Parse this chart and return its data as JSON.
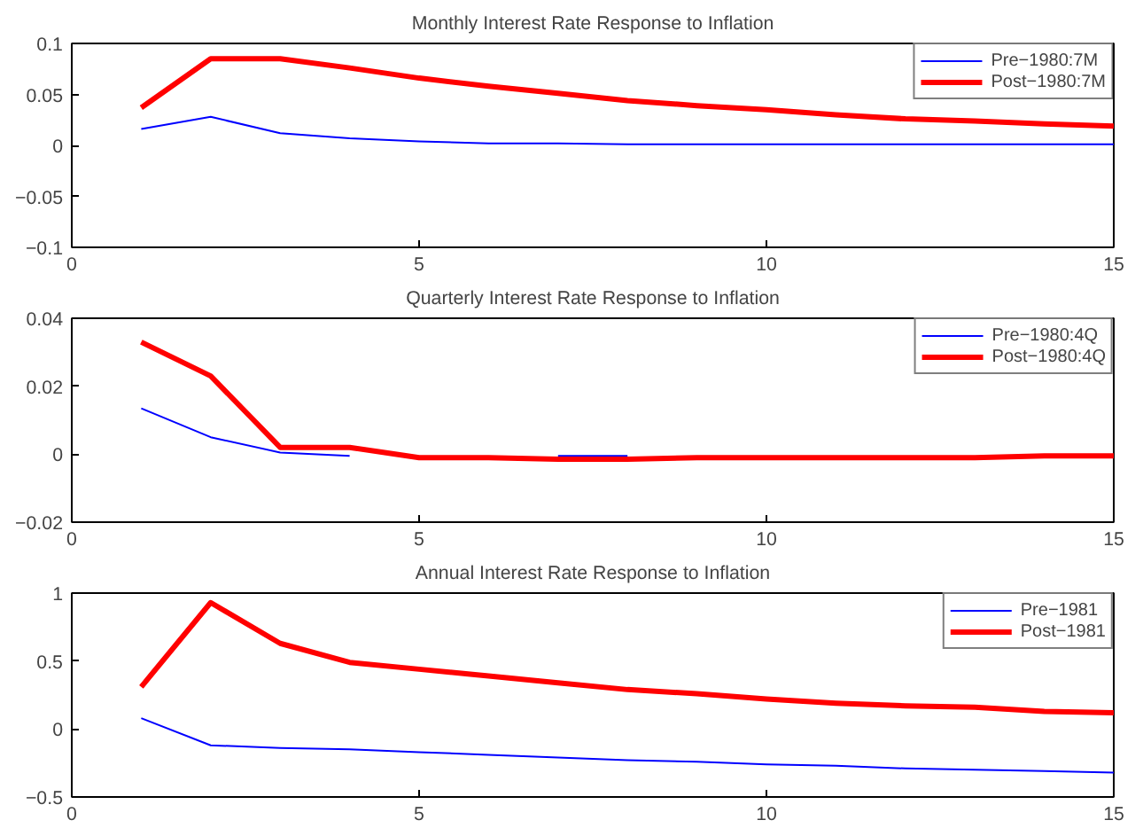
{
  "chart_data": [
    {
      "type": "line",
      "title": "Monthly Interest Rate Response to Inflation",
      "x": [
        1,
        2,
        3,
        4,
        5,
        6,
        7,
        8,
        9,
        10,
        11,
        12,
        13,
        14,
        15
      ],
      "xlim": [
        0,
        15
      ],
      "xticks": [
        0,
        5,
        10,
        15
      ],
      "ylim": [
        -0.1,
        0.1
      ],
      "yticks": [
        {
          "value": -0.1,
          "label": "−0.1"
        },
        {
          "value": -0.05,
          "label": "−0.05"
        },
        0,
        0.05,
        0.1
      ],
      "legend": "top right",
      "series": [
        {
          "name": "Pre−1980:7M",
          "color": "#0000ff",
          "values": [
            0.016,
            0.028,
            0.012,
            0.007,
            0.004,
            0.002,
            0.002,
            0.001,
            0.001,
            0.001,
            0.001,
            0.001,
            0.001,
            0.001,
            0.001
          ]
        },
        {
          "name": "Post−1980:7M",
          "color": "#ff0000",
          "values": [
            0.037,
            0.085,
            0.085,
            0.076,
            0.066,
            0.058,
            0.051,
            0.044,
            0.039,
            0.035,
            0.03,
            0.026,
            0.024,
            0.021,
            0.019
          ]
        }
      ]
    },
    {
      "type": "line",
      "title": "Quarterly Interest Rate Response to Inflation",
      "x": [
        1,
        2,
        3,
        4,
        5,
        6,
        7,
        8,
        9,
        10,
        11,
        12,
        13,
        14,
        15
      ],
      "xlim": [
        0,
        15
      ],
      "xticks": [
        0,
        5,
        10,
        15
      ],
      "ylim": [
        -0.02,
        0.04
      ],
      "yticks": [
        {
          "value": -0.02,
          "label": "−0.02"
        },
        0,
        0.02,
        0.04
      ],
      "legend": "top right",
      "series": [
        {
          "name": "Pre−1980:4Q",
          "color": "#0000ff",
          "values": [
            0.0135,
            0.005,
            0.0005,
            -0.0005,
            null,
            null,
            -0.0005,
            -0.0005,
            null,
            null,
            null,
            null,
            null,
            null,
            null
          ]
        },
        {
          "name": "Post−1980:4Q",
          "color": "#ff0000",
          "values": [
            0.033,
            0.023,
            0.002,
            0.002,
            -0.001,
            -0.001,
            -0.0015,
            -0.0015,
            -0.001,
            -0.001,
            -0.001,
            -0.001,
            -0.001,
            -0.0005,
            -0.0005
          ]
        }
      ]
    },
    {
      "type": "line",
      "title": "Annual Interest Rate Response to Inflation",
      "x": [
        1,
        2,
        3,
        4,
        5,
        6,
        7,
        8,
        9,
        10,
        11,
        12,
        13,
        14,
        15
      ],
      "xlim": [
        0,
        15
      ],
      "xticks": [
        0,
        5,
        10,
        15
      ],
      "ylim": [
        -0.5,
        1
      ],
      "yticks": [
        {
          "value": -0.5,
          "label": "−0.5"
        },
        0,
        0.5,
        1
      ],
      "legend": "top right",
      "series": [
        {
          "name": "Pre−1981",
          "color": "#0000ff",
          "values": [
            0.08,
            -0.12,
            -0.14,
            -0.15,
            -0.17,
            -0.19,
            -0.21,
            -0.23,
            -0.24,
            -0.26,
            -0.27,
            -0.29,
            -0.3,
            -0.31,
            -0.32
          ]
        },
        {
          "name": "Post−1981",
          "color": "#ff0000",
          "values": [
            0.31,
            0.93,
            0.63,
            0.49,
            0.44,
            0.39,
            0.34,
            0.29,
            0.26,
            0.22,
            0.19,
            0.17,
            0.16,
            0.13,
            0.12
          ]
        }
      ]
    }
  ]
}
